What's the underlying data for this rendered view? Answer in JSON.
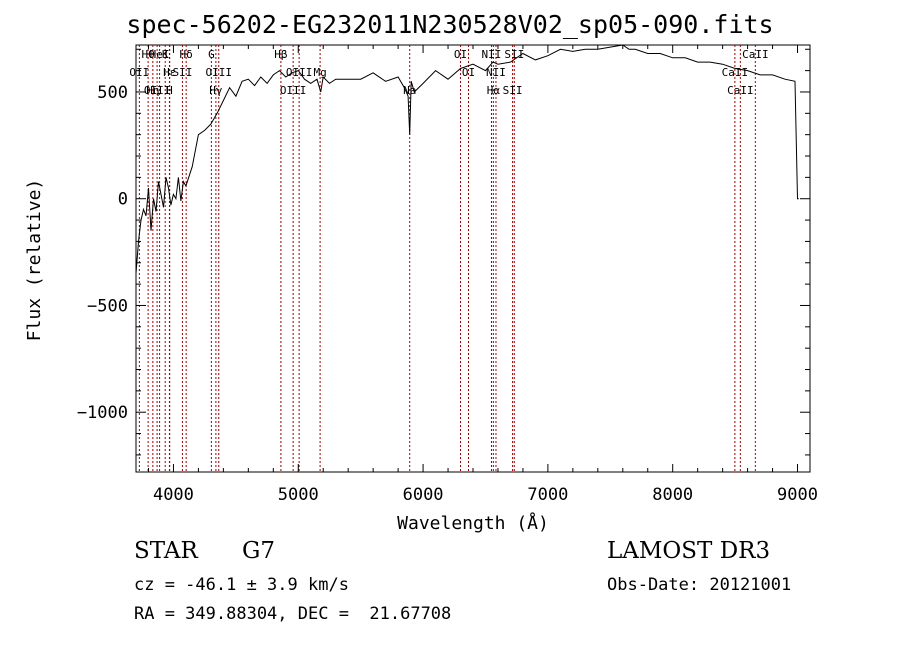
{
  "chart_data": {
    "type": "line",
    "title": "spec-56202-EG232011N230528V02_sp05-090.fits",
    "xlabel": "Wavelength (Å)",
    "ylabel": "Flux (relative)",
    "xlim": [
      3700,
      9100
    ],
    "ylim": [
      -1280,
      720
    ],
    "xticks": [
      4000,
      5000,
      6000,
      7000,
      8000,
      9000
    ],
    "yticks": [
      500,
      0,
      -500,
      -1000
    ],
    "grid": false,
    "series": [
      {
        "x": [
          3700,
          3720,
          3740,
          3760,
          3780,
          3800,
          3820,
          3840,
          3860,
          3880,
          3900,
          3920,
          3940,
          3960,
          3980,
          4000,
          4020,
          4040,
          4060,
          4080,
          4100,
          4150,
          4200,
          4250,
          4300,
          4350,
          4400,
          4450,
          4500,
          4550,
          4600,
          4650,
          4700,
          4750,
          4800,
          4850,
          4900,
          4950,
          5000,
          5050,
          5100,
          5150,
          5180,
          5200,
          5250,
          5300,
          5400,
          5500,
          5600,
          5700,
          5800,
          5850,
          5880,
          5893,
          5905,
          5930,
          6000,
          6100,
          6200,
          6300,
          6400,
          6500,
          6560,
          6600,
          6700,
          6800,
          6900,
          7000,
          7100,
          7200,
          7300,
          7400,
          7500,
          7600,
          7650,
          7700,
          7800,
          7900,
          8000,
          8100,
          8200,
          8300,
          8400,
          8500,
          8600,
          8700,
          8800,
          8900,
          8980,
          9000,
          9010
        ],
        "y": [
          -350,
          -200,
          -100,
          -50,
          -80,
          50,
          -150,
          0,
          -60,
          80,
          20,
          -40,
          100,
          50,
          -30,
          20,
          0,
          100,
          -10,
          80,
          60,
          150,
          300,
          320,
          350,
          400,
          460,
          520,
          480,
          550,
          560,
          530,
          570,
          540,
          580,
          600,
          570,
          590,
          600,
          560,
          540,
          560,
          500,
          570,
          540,
          560,
          560,
          560,
          590,
          550,
          570,
          520,
          480,
          300,
          550,
          500,
          540,
          600,
          560,
          610,
          630,
          600,
          640,
          630,
          640,
          680,
          650,
          670,
          700,
          690,
          700,
          700,
          710,
          720,
          700,
          700,
          680,
          680,
          660,
          660,
          640,
          640,
          630,
          610,
          600,
          580,
          580,
          560,
          550,
          0,
          0
        ]
      }
    ],
    "lines": [
      {
        "label": "Hθ",
        "x": 3797
      },
      {
        "label": "OII",
        "x": 3727
      },
      {
        "label": "OIII",
        "x": 3869
      },
      {
        "label": "K",
        "x": 3934
      },
      {
        "label": "Hε",
        "x": 3970
      },
      {
        "label": "Hη",
        "x": 3835
      },
      {
        "label": "HeI",
        "x": 3889
      },
      {
        "label": "SII",
        "x": 4072
      },
      {
        "label": "H",
        "x": 3968
      },
      {
        "label": "Hδ",
        "x": 4102
      },
      {
        "label": "OIII",
        "x": 4363
      },
      {
        "label": "Hγ",
        "x": 4340
      },
      {
        "label": "G",
        "x": 4304
      },
      {
        "label": "OIII",
        "x": 5007
      },
      {
        "label": "OIII",
        "x": 4959
      },
      {
        "label": "Hβ",
        "x": 4861
      },
      {
        "label": "Mg",
        "x": 5175
      },
      {
        "label": "Na",
        "x": 5893
      },
      {
        "label": "OI",
        "x": 6300
      },
      {
        "label": "OI",
        "x": 6364
      },
      {
        "label": "Hα",
        "x": 6563
      },
      {
        "label": "NII",
        "x": 6548
      },
      {
        "label": "NII",
        "x": 6584
      },
      {
        "label": "SII",
        "x": 6717
      },
      {
        "label": "SII",
        "x": 6731
      },
      {
        "label": "CaII",
        "x": 8498
      },
      {
        "label": "CaII",
        "x": 8542
      },
      {
        "label": "CaII",
        "x": 8662
      }
    ]
  },
  "footer": {
    "class_label": "STAR",
    "subclass": "G7",
    "cz": "cz = -46.1 ± 3.9 km/s",
    "coords": "RA = 349.88304, DEC =  21.67708",
    "survey": "LAMOST DR3",
    "obs_date": "Obs-Date: 20121001"
  }
}
